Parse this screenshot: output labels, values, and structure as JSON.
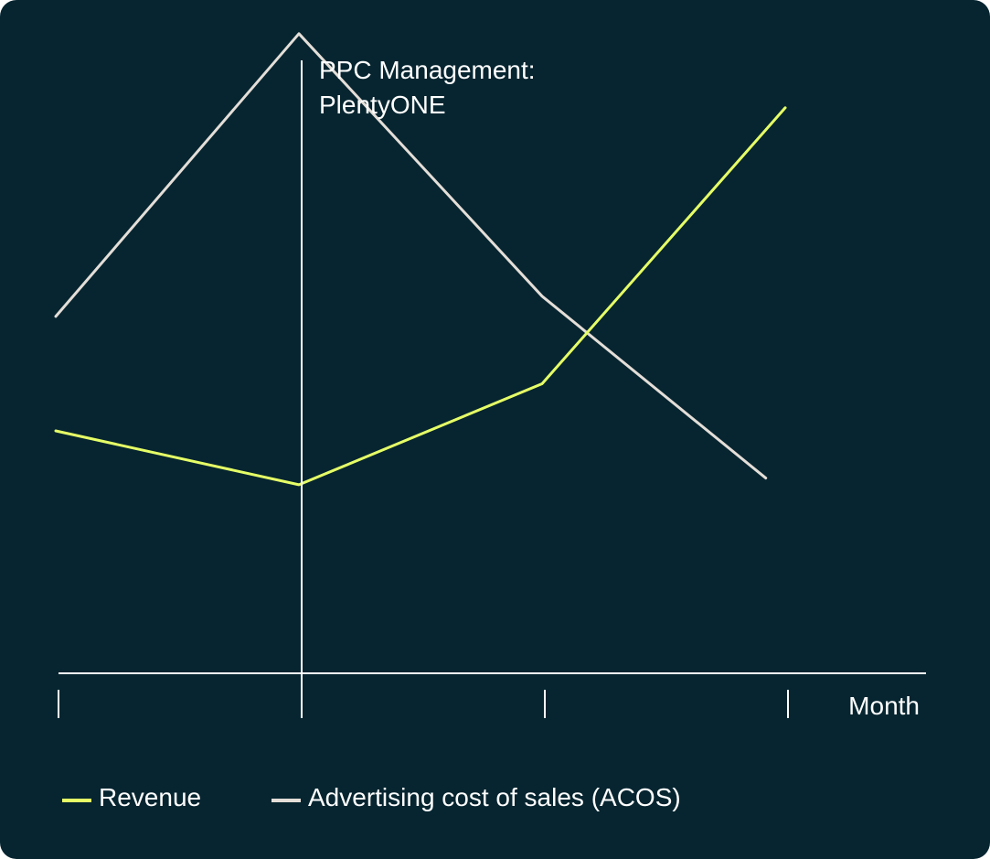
{
  "chart_data": {
    "type": "line",
    "x": [
      1,
      2,
      3,
      4
    ],
    "xlabel": "Month",
    "ylabel": "",
    "ylim": [
      0,
      100
    ],
    "grid": false,
    "legend_position": "bottom-left",
    "series": [
      {
        "name": "Revenue",
        "color": "#E6FF66",
        "x": [
          1,
          2,
          3,
          4
        ],
        "values": [
          36,
          28,
          43,
          84
        ]
      },
      {
        "name": "Advertising cost of sales (ACOS)",
        "color": "#E4DED8",
        "x": [
          1,
          2,
          3,
          3.92
        ],
        "values": [
          53,
          95,
          56,
          29
        ]
      }
    ],
    "annotation": {
      "x": 2,
      "lines": [
        "PPC Management:",
        "PlentyONE"
      ]
    }
  },
  "colors": {
    "background": "#062530",
    "axis": "#FFFFFF",
    "text": "#FFFFFF"
  }
}
